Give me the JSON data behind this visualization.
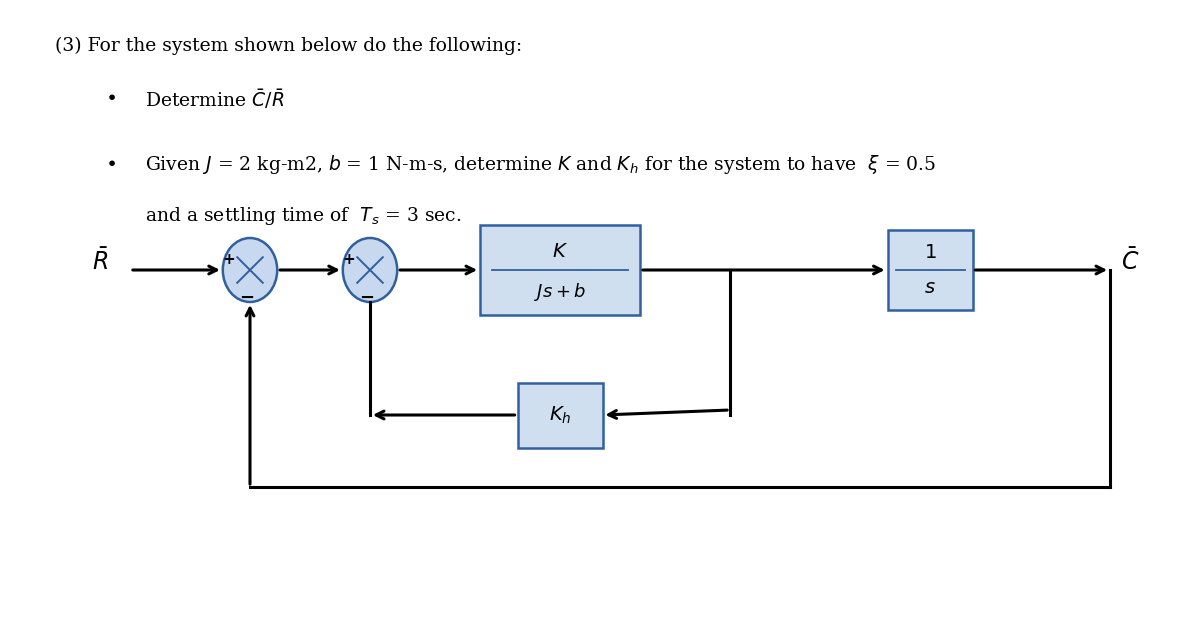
{
  "title_text": "(3) For the system shown below do the following:",
  "bullet1": "Determine $\\bar{C}/\\bar{R}$",
  "bullet2": "Given $J$ = 2 kg-m2, $b$ = 1 N-m-s, determine $K$ and $K_h$ for the system to have  $\\xi$ = 0.5\nand a settling time of  $T_s$ = 3 sec.",
  "bg_color": "#ffffff",
  "box_fill": "#d0dff0",
  "box_edge": "#3060a0",
  "sumjunc_fill": "#c8d8ee",
  "sumjunc_edge": "#3060a0",
  "arrow_color": "#000000",
  "text_color": "#000000",
  "diagram": {
    "R_label": "$\\bar{R}$",
    "C_label": "$\\bar{C}$",
    "block1_label_num": "$K$",
    "block1_label_den": "$Js+b$",
    "block2_label_num": "$1$",
    "block2_label_den": "$s$",
    "block3_label": "$K_h$",
    "sum1_signs": [
      "+",
      "−"
    ],
    "sum2_signs": [
      "+",
      "−"
    ]
  }
}
